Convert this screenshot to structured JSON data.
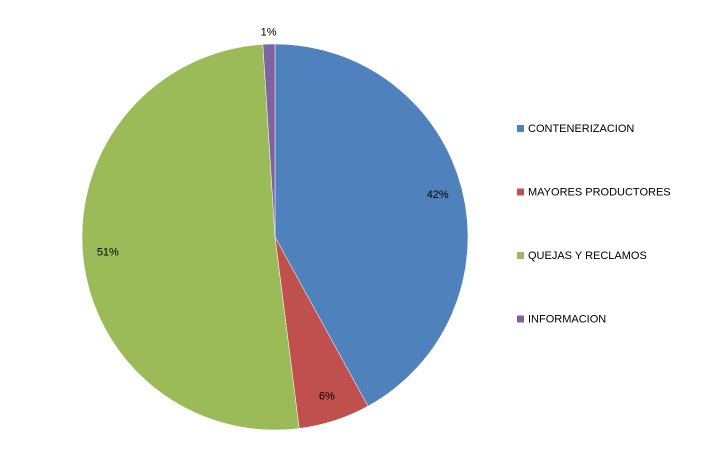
{
  "chart_data": {
    "type": "pie",
    "categories": [
      "CONTENERIZACION",
      "MAYORES PRODUCTORES",
      "QUEJAS Y RECLAMOS",
      "INFORMACION"
    ],
    "values": [
      42,
      6,
      51,
      1
    ],
    "value_labels": [
      "42%",
      "6%",
      "51%",
      "1%"
    ],
    "colors": [
      "#4f81bd",
      "#c0504d",
      "#9bbb59",
      "#8064a2"
    ],
    "legend": "right"
  }
}
